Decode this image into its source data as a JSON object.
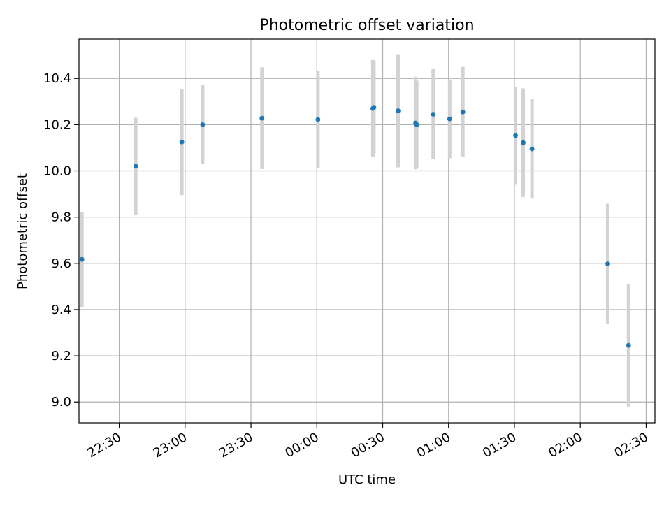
{
  "chart_data": {
    "type": "scatter",
    "title": "Photometric offset variation",
    "xlabel": "UTC time",
    "ylabel": "Photometric offset",
    "x_unit": "UTC time (HH:MM)",
    "xlim": [
      "22:11:40",
      "02:34:00"
    ],
    "ylim": [
      8.91,
      10.57
    ],
    "x_ticks": [
      "22:30",
      "23:00",
      "23:30",
      "00:00",
      "00:30",
      "01:00",
      "01:30",
      "02:00",
      "02:30"
    ],
    "y_ticks": [
      "9.0",
      "9.2",
      "9.4",
      "9.6",
      "9.8",
      "10.0",
      "10.2",
      "10.4"
    ],
    "grid": true,
    "marker_color": "#1f77b4",
    "errorbar_color": "#d3d3d3",
    "points": [
      {
        "time": "22:13:00",
        "y": 9.617,
        "err": 0.205
      },
      {
        "time": "22:37:30",
        "y": 10.02,
        "err": 0.21
      },
      {
        "time": "22:58:30",
        "y": 10.125,
        "err": 0.23
      },
      {
        "time": "23:08:00",
        "y": 10.2,
        "err": 0.17
      },
      {
        "time": "23:35:00",
        "y": 10.228,
        "err": 0.22
      },
      {
        "time": "00:00:30",
        "y": 10.222,
        "err": 0.21
      },
      {
        "time": "00:25:30",
        "y": 10.27,
        "err": 0.21
      },
      {
        "time": "00:26:00",
        "y": 10.275,
        "err": 0.2
      },
      {
        "time": "00:37:00",
        "y": 10.26,
        "err": 0.245
      },
      {
        "time": "00:45:00",
        "y": 10.207,
        "err": 0.2
      },
      {
        "time": "00:45:30",
        "y": 10.2,
        "err": 0.19
      },
      {
        "time": "00:53:00",
        "y": 10.245,
        "err": 0.195
      },
      {
        "time": "01:00:30",
        "y": 10.225,
        "err": 0.17
      },
      {
        "time": "01:06:30",
        "y": 10.255,
        "err": 0.195
      },
      {
        "time": "01:30:30",
        "y": 10.153,
        "err": 0.21
      },
      {
        "time": "01:34:00",
        "y": 10.122,
        "err": 0.235
      },
      {
        "time": "01:38:00",
        "y": 10.095,
        "err": 0.215
      },
      {
        "time": "02:12:30",
        "y": 9.598,
        "err": 0.26
      },
      {
        "time": "02:22:00",
        "y": 9.245,
        "err": 0.265
      }
    ]
  }
}
